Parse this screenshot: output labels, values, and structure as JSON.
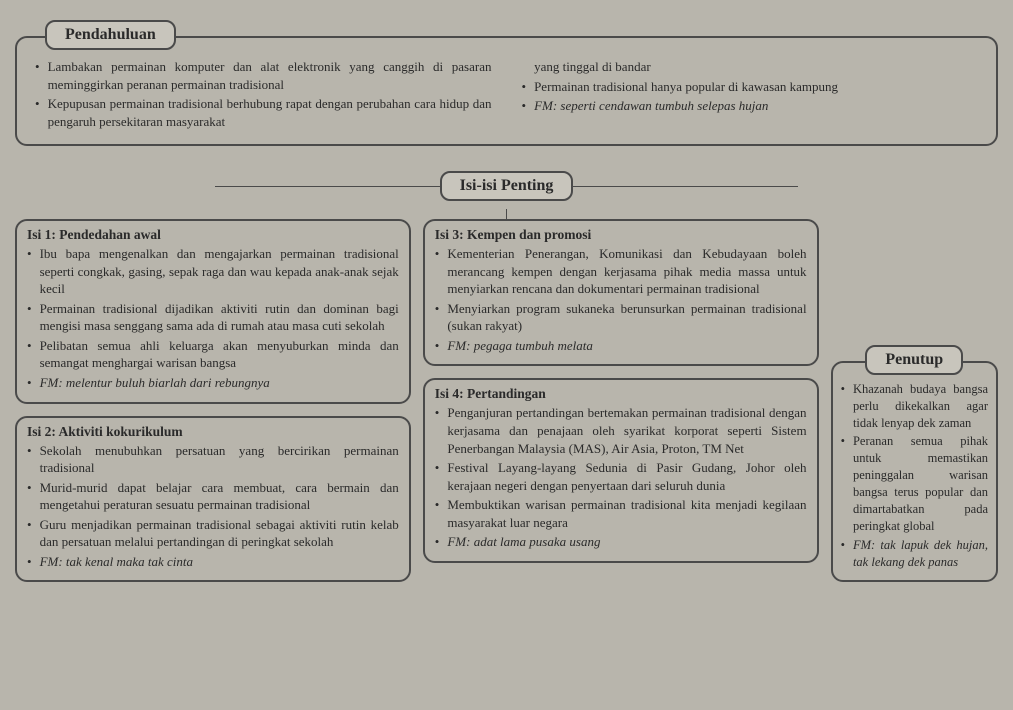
{
  "labels": {
    "pendahuluan": "Pendahuluan",
    "isi_penting": "Isi-isi Penting",
    "penutup": "Penutup"
  },
  "pendahuluan": {
    "left": [
      "Lambakan permainan komputer dan alat elektronik yang canggih di pasaran meminggirkan peranan permainan tradisional",
      "Kepupusan permainan tradisional berhubung rapat dengan perubahan cara hidup dan pengaruh persekitaran masyarakat"
    ],
    "right_cont": "yang tinggal di bandar",
    "right": [
      "Permainan tradisional hanya popular di kawasan kampung"
    ],
    "right_fm": "FM: seperti cendawan tumbuh selepas hujan"
  },
  "isi1": {
    "title": "Isi 1: Pendedahan awal",
    "items": [
      "Ibu bapa mengenalkan dan mengajarkan permainan tradisional seperti congkak, gasing, sepak raga dan wau kepada anak-anak sejak kecil",
      "Permainan tradisional dijadikan aktiviti rutin dan dominan bagi mengisi masa senggang sama ada di rumah atau masa cuti sekolah",
      "Pelibatan semua ahli keluarga akan menyuburkan minda dan semangat menghargai warisan bangsa"
    ],
    "fm": "FM: melentur buluh biarlah dari rebungnya"
  },
  "isi2": {
    "title": "Isi 2: Aktiviti kokurikulum",
    "items": [
      "Sekolah menubuhkan persatuan yang bercirikan permainan tradisional",
      "Murid-murid dapat belajar cara membuat, cara bermain dan mengetahui peraturan sesuatu permainan tradisional",
      "Guru menjadikan permainan tradisional sebagai aktiviti rutin kelab dan persatuan melalui pertandingan di peringkat sekolah"
    ],
    "fm": "FM: tak kenal maka tak cinta"
  },
  "isi3": {
    "title": "Isi 3: Kempen dan promosi",
    "items": [
      "Kementerian Penerangan, Komunikasi dan Kebudayaan boleh merancang kempen dengan kerjasama pihak media massa untuk menyiarkan rencana dan dokumentari permainan tradisional",
      "Menyiarkan program sukaneka berunsurkan permainan tradisional (sukan rakyat)"
    ],
    "fm": "FM: pegaga tumbuh melata"
  },
  "isi4": {
    "title": "Isi 4: Pertandingan",
    "items": [
      "Penganjuran pertandingan bertemakan permainan tradisional dengan kerjasama dan penajaan oleh syarikat korporat seperti Sistem Penerbangan Malaysia (MAS), Air Asia, Proton, TM Net",
      "Festival Layang-layang Sedunia di Pasir Gudang, Johor oleh kerajaan negeri dengan penyertaan dari seluruh dunia",
      "Membuktikan warisan permainan tradisional kita menjadi kegilaan masyarakat luar negara"
    ],
    "fm": "FM: adat lama pusaka usang"
  },
  "penutup": {
    "items": [
      "Khazanah budaya bangsa perlu dikekalkan agar tidak lenyap dek zaman",
      "Peranan semua pihak untuk memastikan peninggalan warisan bangsa terus popular dan dimartabatkan pada peringkat global"
    ],
    "fm": "FM: tak lapuk dek hujan, tak lekang dek panas"
  }
}
